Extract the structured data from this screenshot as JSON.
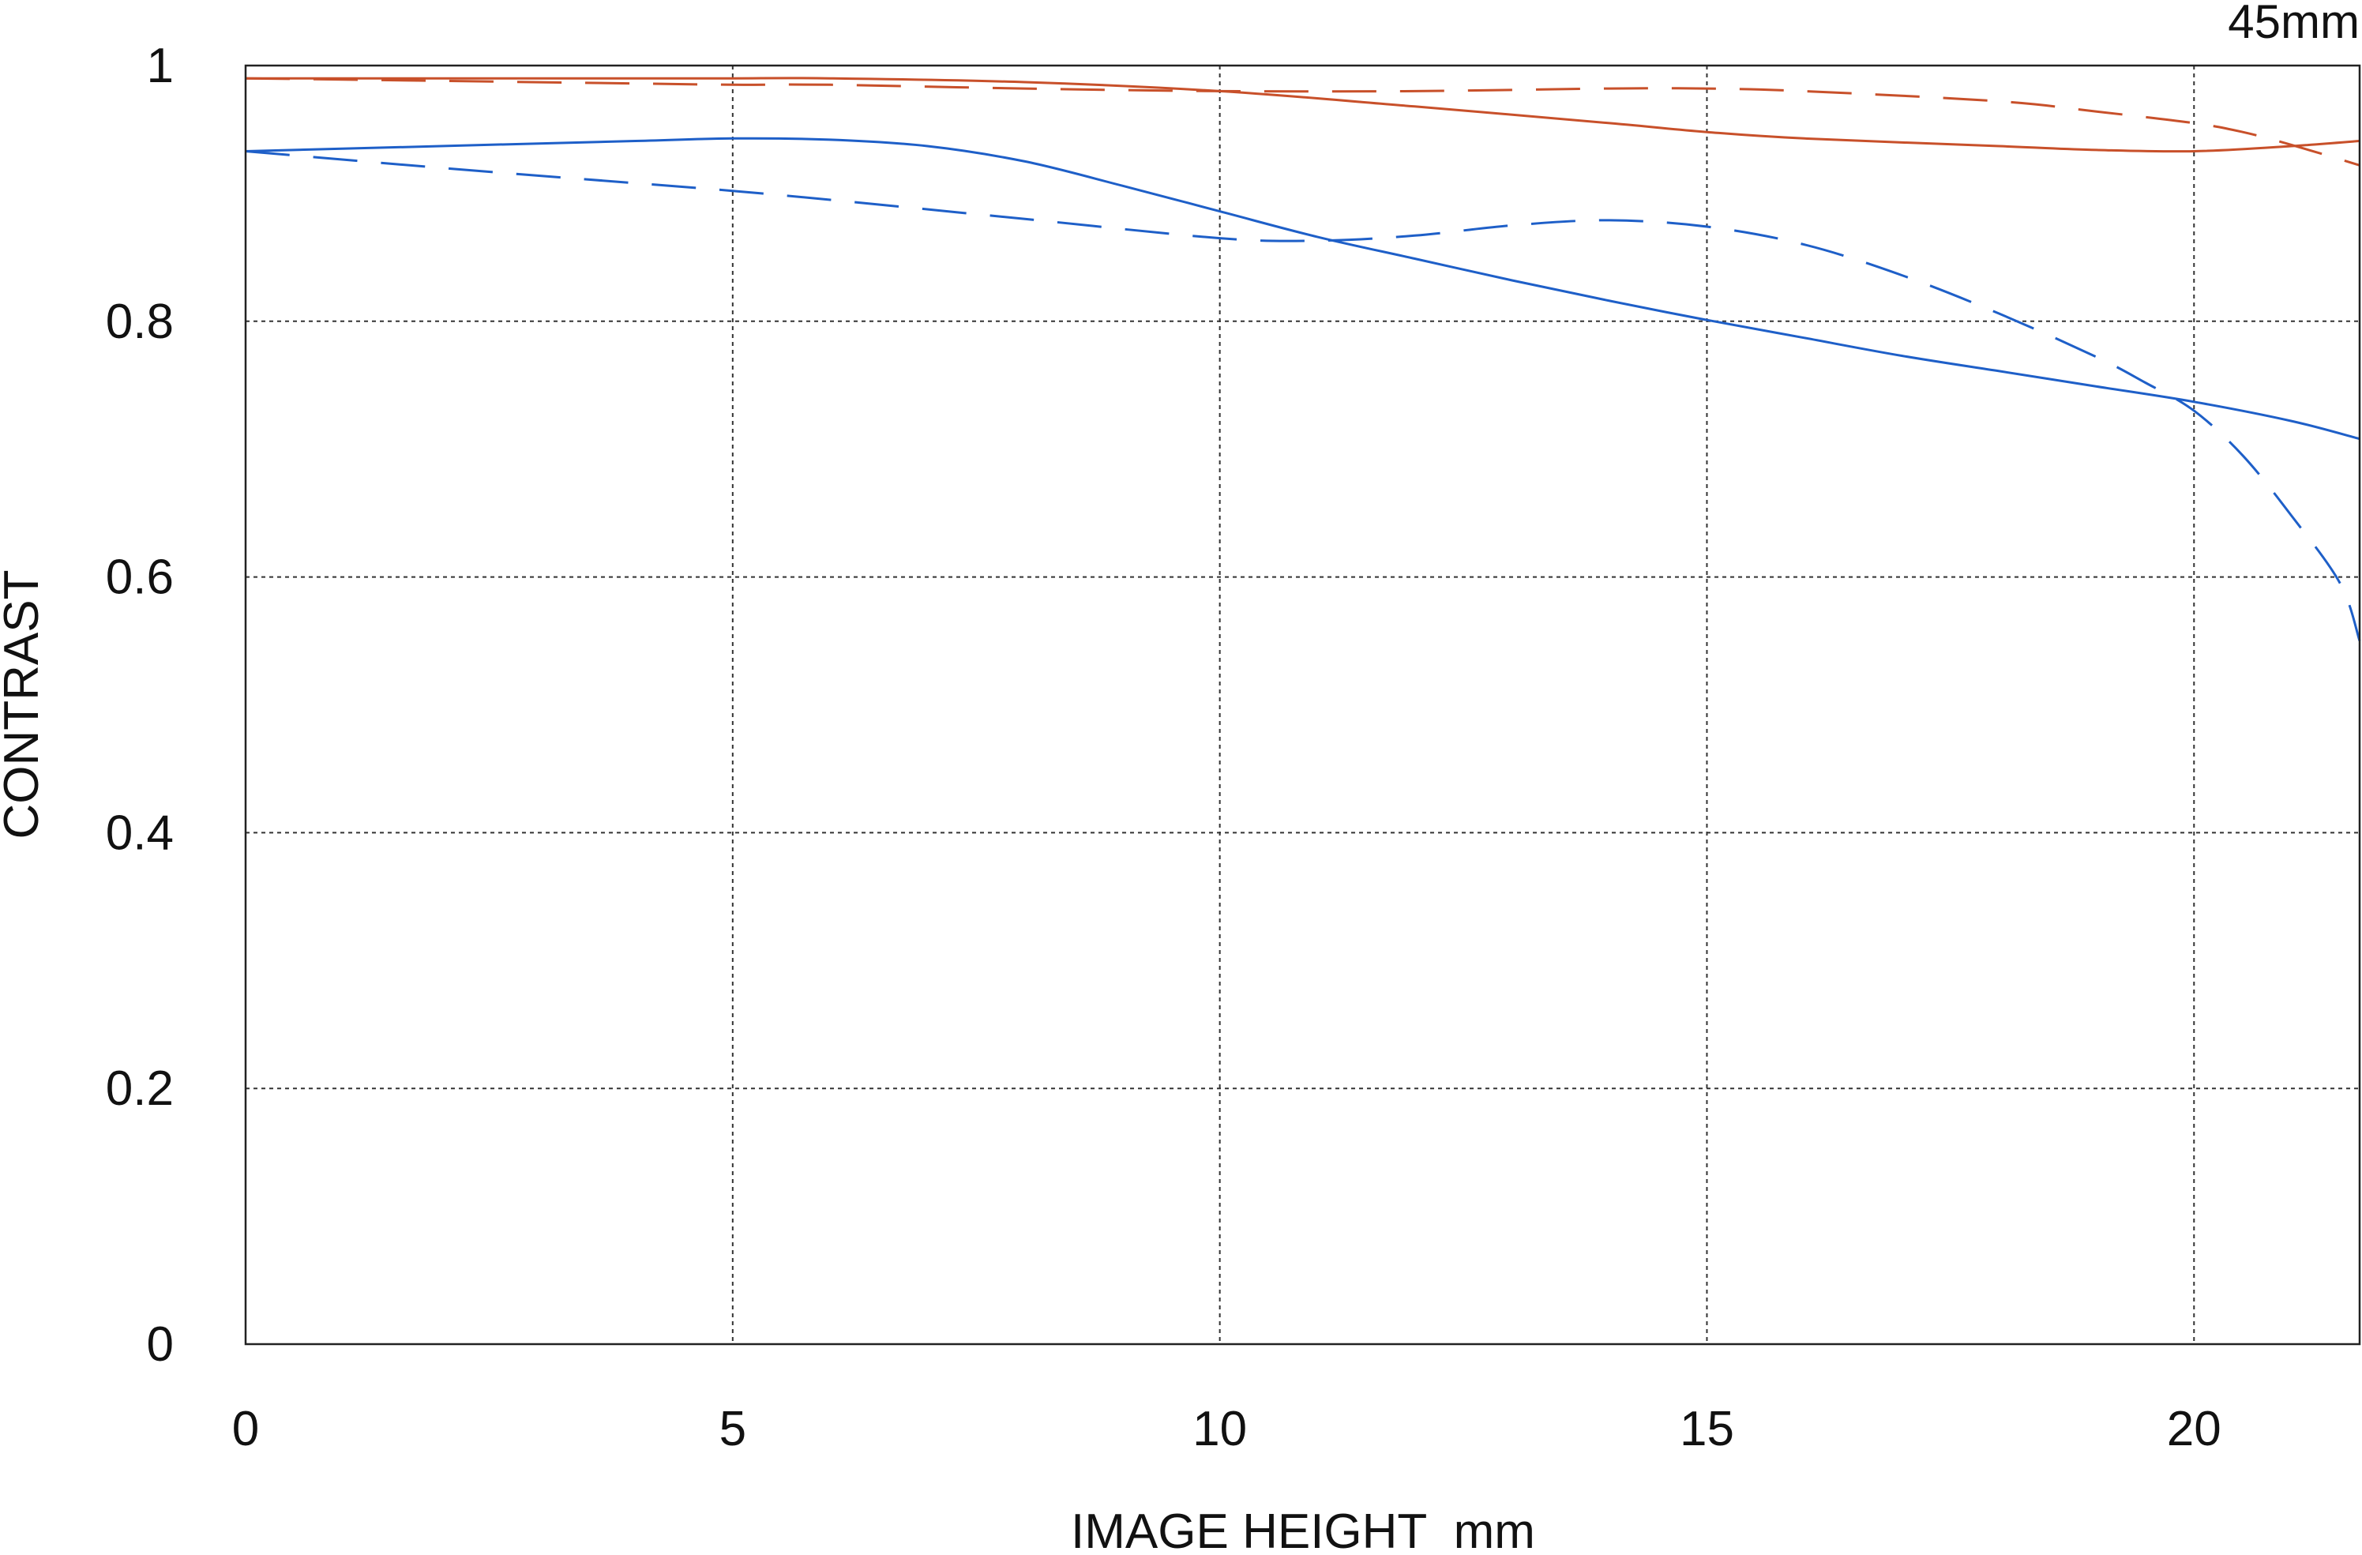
{
  "chart_data": {
    "type": "line",
    "title": "",
    "annotation": "45mm",
    "xlabel": "IMAGE HEIGHT  mm",
    "ylabel": "CONTRAST",
    "xlim": [
      0,
      21.7
    ],
    "ylim": [
      0,
      1
    ],
    "x_ticks": [
      0,
      5,
      10,
      15,
      20
    ],
    "x_tick_labels": [
      "0",
      "5",
      "10",
      "15",
      "20"
    ],
    "y_ticks": [
      0,
      0.2,
      0.4,
      0.6,
      0.8,
      1
    ],
    "y_tick_labels": [
      "0",
      "0.2",
      "0.4",
      "0.6",
      "0.8",
      "1"
    ],
    "grid": true,
    "legend": "none",
    "series": [
      {
        "color": "#c8502a",
        "dash": "solid",
        "x": [
          0,
          2,
          4,
          5,
          6,
          8,
          10,
          12,
          14,
          15,
          16,
          18,
          19,
          20,
          21,
          21.7
        ],
        "y": [
          0.99,
          0.99,
          0.99,
          0.99,
          0.99,
          0.987,
          0.98,
          0.968,
          0.955,
          0.948,
          0.943,
          0.937,
          0.934,
          0.933,
          0.937,
          0.941
        ]
      },
      {
        "color": "#c8502a",
        "dash": "dashed",
        "x": [
          0,
          2,
          4,
          5,
          6,
          8,
          10,
          12,
          14,
          15,
          16,
          18,
          19,
          20,
          20.5,
          21,
          21.7
        ],
        "y": [
          0.99,
          0.988,
          0.986,
          0.985,
          0.985,
          0.982,
          0.98,
          0.98,
          0.982,
          0.982,
          0.98,
          0.972,
          0.964,
          0.955,
          0.948,
          0.938,
          0.922
        ]
      },
      {
        "color": "#1e5fc8",
        "dash": "solid",
        "x": [
          0,
          2,
          4,
          5,
          6,
          7,
          8,
          9,
          10,
          11,
          12,
          13,
          14,
          15,
          16,
          17,
          18,
          19,
          20,
          21,
          21.7
        ],
        "y": [
          0.933,
          0.937,
          0.941,
          0.943,
          0.942,
          0.937,
          0.925,
          0.906,
          0.886,
          0.866,
          0.849,
          0.832,
          0.816,
          0.801,
          0.787,
          0.773,
          0.761,
          0.749,
          0.737,
          0.722,
          0.708
        ]
      },
      {
        "color": "#1e5fc8",
        "dash": "dashed",
        "x": [
          0,
          2,
          4,
          5,
          6,
          8,
          10,
          11,
          12,
          13,
          14,
          15,
          16,
          17,
          18,
          19,
          19.5,
          20,
          20.5,
          21,
          21.5,
          21.7
        ],
        "y": [
          0.933,
          0.92,
          0.908,
          0.902,
          0.895,
          0.88,
          0.865,
          0.863,
          0.867,
          0.875,
          0.879,
          0.874,
          0.86,
          0.836,
          0.806,
          0.772,
          0.752,
          0.73,
          0.695,
          0.648,
          0.595,
          0.55
        ]
      }
    ]
  }
}
